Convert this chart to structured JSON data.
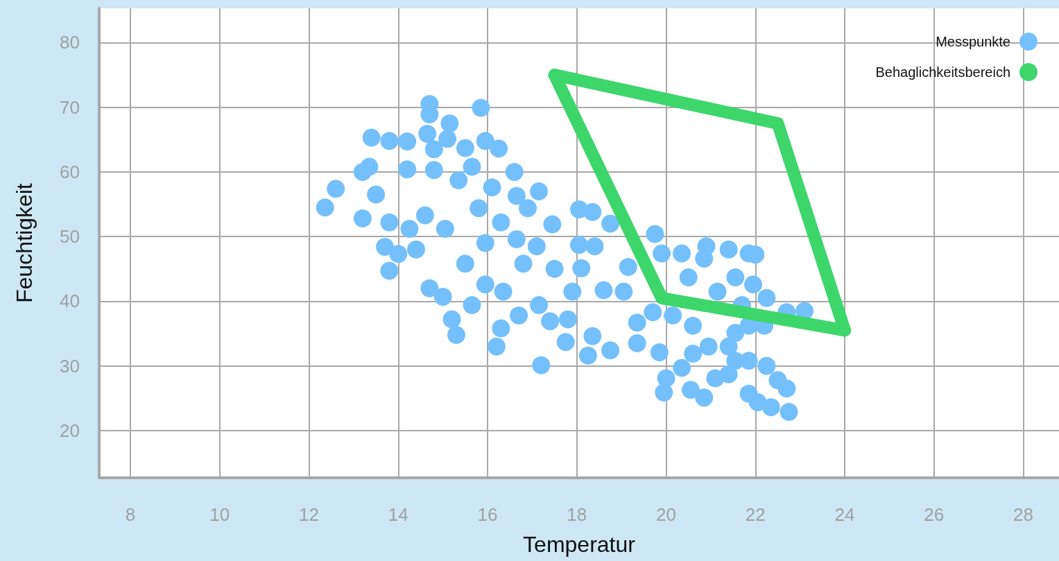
{
  "chart_data": {
    "type": "scatter",
    "xlabel": "Temperatur",
    "ylabel": "Feuchtigkeit",
    "xlim": [
      7.3,
      28.8
    ],
    "xticks": [
      8,
      10,
      12,
      14,
      16,
      18,
      20,
      22,
      24,
      26,
      28
    ],
    "ylim": [
      12.7,
      85.3
    ],
    "yticks": [
      20,
      30,
      40,
      50,
      60,
      70,
      80
    ],
    "grid": true,
    "legend": "top right",
    "series": [
      {
        "name": "Messpunkte",
        "marker": "circle",
        "color": "#74c0fc",
        "x": [
          12.36,
          12.6,
          13.4,
          13.8,
          14.2,
          14.2,
          13.2,
          13.2,
          13.7,
          13.8,
          14.0,
          14.7,
          14.7,
          14.65,
          15.15,
          15.1,
          15.85,
          14.8,
          14.8,
          15.5,
          15.95,
          16.25,
          16.6,
          17.15,
          16.65,
          17.45,
          17.1,
          17.5,
          17.15,
          17.4,
          17.2,
          15.3,
          16.2,
          16.3,
          16.7,
          14.7,
          15.0,
          15.2,
          14.6,
          14.4,
          15.95,
          15.8,
          15.35,
          15.65,
          16.1,
          16.3,
          16.65,
          16.8,
          15.95,
          15.65,
          16.35,
          16.9,
          15.05,
          15.5,
          13.5,
          13.8,
          13.35,
          14.25,
          18.05,
          18.35,
          18.75,
          18.05,
          18.4,
          18.1,
          17.9,
          17.8,
          17.75,
          18.25,
          18.35,
          18.75,
          18.6,
          19.05,
          19.15,
          19.35,
          19.35,
          19.7,
          19.75,
          19.9,
          19.85,
          20.0,
          19.95,
          20.35,
          20.9,
          20.85,
          20.5,
          21.15,
          21.4,
          21.85,
          22.0,
          21.55,
          21.95,
          22.25,
          20.6,
          20.95,
          21.55,
          21.85,
          22.2,
          21.1,
          20.35,
          20.55,
          20.85,
          21.4,
          21.85,
          22.05,
          22.25,
          22.5,
          22.7,
          22.35,
          22.75,
          22.7,
          23.1,
          21.55,
          20.15,
          21.7,
          21.4,
          21.85,
          20.6
        ],
        "values": [
          54.5,
          57.4,
          65.3,
          64.8,
          64.7,
          60.4,
          60,
          52.8,
          48.4,
          44.7,
          47.3,
          70.5,
          68.9,
          65.9,
          67.5,
          65.1,
          69.9,
          63.5,
          60.3,
          63.7,
          64.8,
          63.6,
          60,
          57,
          56.3,
          51.9,
          48.5,
          45,
          39.4,
          36.9,
          30.1,
          34.8,
          33,
          35.8,
          37.8,
          42,
          40.7,
          37.2,
          53.3,
          48,
          49,
          54.4,
          58.7,
          60.8,
          57.6,
          52.2,
          49.6,
          45.8,
          42.6,
          39.4,
          41.5,
          54.4,
          51.2,
          45.8,
          56.5,
          52.2,
          60.8,
          51.2,
          54.2,
          53.8,
          52,
          48.7,
          48.5,
          45.1,
          41.5,
          37.2,
          33.7,
          31.6,
          34.6,
          32.4,
          41.7,
          41.5,
          45.3,
          36.7,
          33.5,
          38.3,
          50.4,
          47.4,
          32.1,
          28.1,
          25.9,
          47.4,
          48.5,
          46.6,
          43.7,
          41.5,
          48,
          47.4,
          47.2,
          43.7,
          42.6,
          40.5,
          36.2,
          33,
          35.1,
          36.2,
          36.2,
          28.1,
          29.7,
          26.3,
          25.1,
          28.7,
          25.7,
          24.4,
          30,
          27.8,
          26.5,
          23.6,
          22.9,
          38.3,
          38.5,
          30.8,
          37.8,
          39.4,
          33,
          30.8,
          31.9
        ]
      },
      {
        "name": "Behaglichkeitsbereich",
        "type": "line",
        "marker": "none",
        "color": "#3dd66b",
        "x": [
          17.5,
          22.5,
          24
        ],
        "values": [
          75,
          67.5,
          35.5
        ]
      },
      {
        "type": "line",
        "marker": "none",
        "color": "#3dd66b",
        "x": [
          17.5,
          19.9,
          24
        ],
        "values": [
          75,
          40.5,
          35.5
        ]
      }
    ]
  }
}
